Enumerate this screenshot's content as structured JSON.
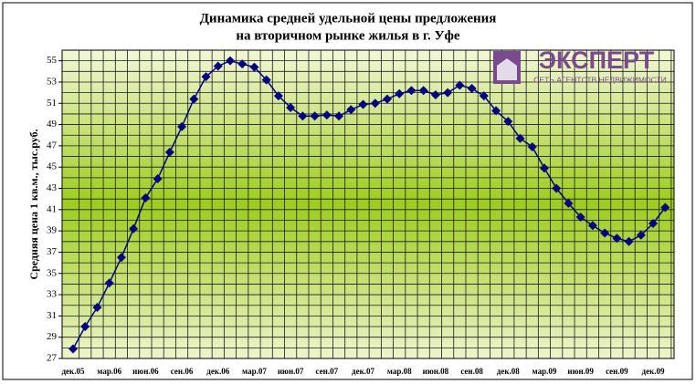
{
  "chart_data": {
    "type": "line",
    "title": "Динамика средней удельной цены предложения",
    "subtitle": "на вторичном рынке жилья в г. Уфе",
    "ylabel": "Средняя цена 1 кв.м., тыс.руб.",
    "logo": {
      "name": "ЭКСПЕРТ",
      "tagline": "СЕТЬ АГЕНТСТВ НЕДВИЖИМОСТИ"
    },
    "categories": [
      "дек.05",
      null,
      null,
      "мар.06",
      null,
      null,
      "июн.06",
      null,
      null,
      "сен.06",
      null,
      null,
      "дек.06",
      null,
      null,
      "мар.07",
      null,
      null,
      "июн.07",
      null,
      null,
      "сен.07",
      null,
      null,
      "дек.07",
      null,
      null,
      "мар.08",
      null,
      null,
      "июн.08",
      null,
      null,
      "сен.08",
      null,
      null,
      "дек.08",
      null,
      null,
      "мар.09",
      null,
      null,
      "июн.09",
      null,
      null,
      "сен.09",
      null,
      null,
      "дек.09",
      null
    ],
    "series": [
      {
        "name": "Средняя цена",
        "color": "#000080",
        "values": [
          27.9,
          30.0,
          31.8,
          34.1,
          36.5,
          39.2,
          42.1,
          43.9,
          46.4,
          48.8,
          51.4,
          53.5,
          54.5,
          55.0,
          54.7,
          54.4,
          53.2,
          51.7,
          50.6,
          49.8,
          49.8,
          49.9,
          49.8,
          50.4,
          50.9,
          51.0,
          51.4,
          51.9,
          52.2,
          52.2,
          51.8,
          52.0,
          52.7,
          52.4,
          51.7,
          50.3,
          49.3,
          47.7,
          46.9,
          44.9,
          43.0,
          41.6,
          40.3,
          39.5,
          38.8,
          38.3,
          38.0,
          38.6,
          39.7,
          41.2
        ]
      }
    ],
    "ylim": [
      27,
      56
    ],
    "yticks": [
      27,
      29,
      31,
      33,
      35,
      37,
      39,
      41,
      43,
      45,
      47,
      49,
      51,
      53,
      55
    ],
    "y_minor_ticks": [
      28,
      30,
      32,
      34,
      36,
      38,
      40,
      42,
      44,
      46,
      48,
      50,
      52,
      54,
      56
    ],
    "grid": true
  }
}
